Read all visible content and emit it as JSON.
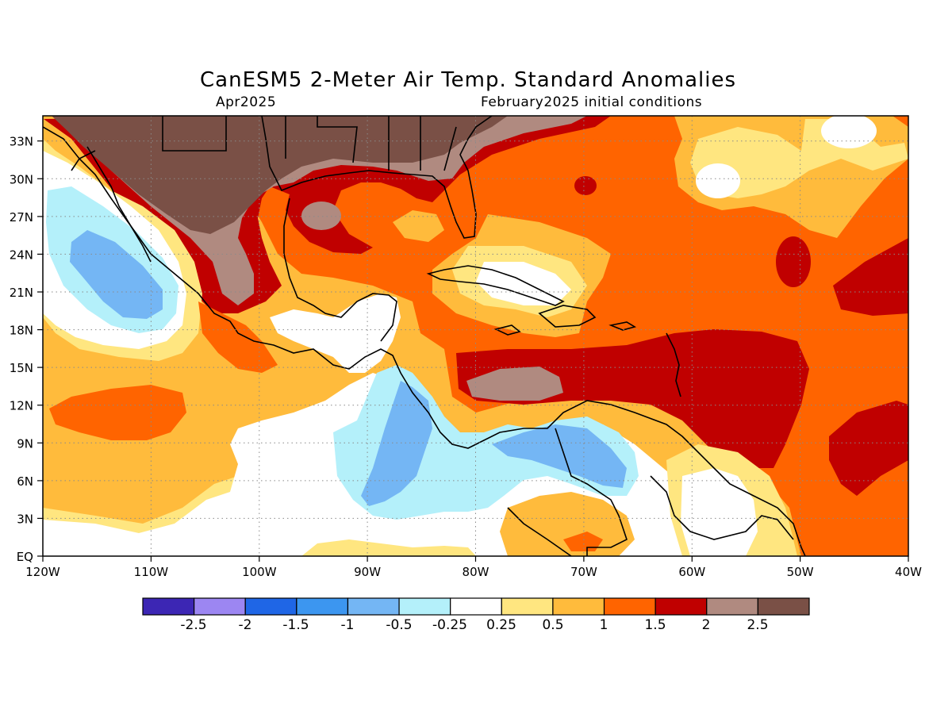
{
  "title": "CanESM5 2-Meter Air Temp. Standard Anomalies",
  "subtitle_left": "Apr2025",
  "subtitle_right": "February2025 initial conditions",
  "map": {
    "lon_range": [
      -120,
      -40
    ],
    "lat_range": [
      0,
      35
    ],
    "grid": "dotted",
    "lon_labels": [
      "120W",
      "110W",
      "100W",
      "90W",
      "80W",
      "70W",
      "60W",
      "50W",
      "40W"
    ],
    "lat_labels": [
      "EQ",
      "3N",
      "6N",
      "9N",
      "12N",
      "15N",
      "18N",
      "21N",
      "24N",
      "27N",
      "30N",
      "33N"
    ]
  },
  "colorbar": {
    "colors": [
      "#3c26b4",
      "#9c86f2",
      "#1f66e6",
      "#3c96f0",
      "#74b6f4",
      "#b4f0fa",
      "#ffffff",
      "#ffe680",
      "#ffbb3c",
      "#ff6400",
      "#c00000",
      "#b08a80",
      "#7a5046"
    ],
    "labels": [
      "-2.5",
      "-2",
      "-1.5",
      "-1",
      "-0.5",
      "-0.25",
      "0.25",
      "0.5",
      "1",
      "1.5",
      "2",
      "2.5"
    ]
  }
}
